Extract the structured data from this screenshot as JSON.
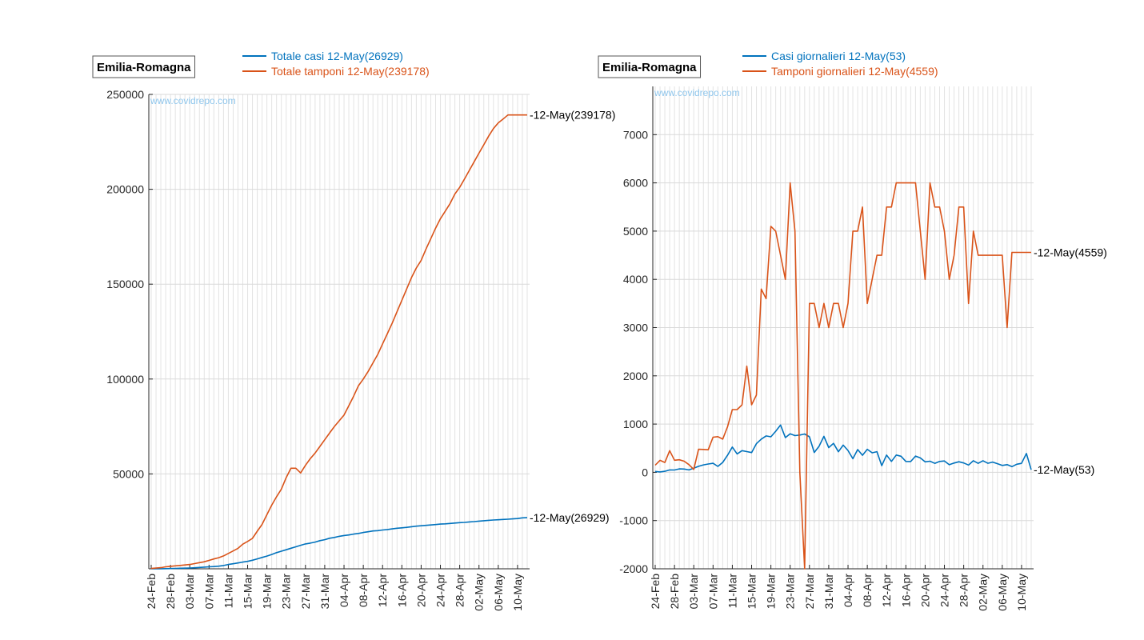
{
  "chart_data": [
    {
      "type": "line",
      "region": "Emilia-Romagna",
      "watermark": "www.covidrepo.com",
      "ylim": [
        0,
        250000
      ],
      "yticks": [
        50000,
        100000,
        150000,
        200000,
        250000
      ],
      "xtick_labels": [
        "24-Feb",
        "28-Feb",
        "03-Mar",
        "07-Mar",
        "11-Mar",
        "15-Mar",
        "19-Mar",
        "23-Mar",
        "27-Mar",
        "31-Mar",
        "04-Apr",
        "08-Apr",
        "12-Apr",
        "16-Apr",
        "20-Apr",
        "24-Apr",
        "28-Apr",
        "02-May",
        "06-May",
        "10-May"
      ],
      "x_start": "24-Feb",
      "n_days": 79,
      "grid": true,
      "legend_position": "top",
      "series": [
        {
          "name": "Totale casi 12-May(26929)",
          "color": "#0072bd",
          "end_label": "12-May(26929)",
          "values": [
            18,
            26,
            47,
            97,
            145,
            217,
            285,
            335,
            420,
            544,
            698,
            870,
            1058,
            1180,
            1386,
            1739,
            2263,
            2644,
            3093,
            3522,
            3931,
            4525,
            5214,
            5968,
            6705,
            7555,
            8535,
            9254,
            10054,
            10816,
            11588,
            12383,
            13119,
            13531,
            14074,
            14821,
            15333,
            16113,
            16540,
            17104,
            17556,
            17825,
            18297,
            18651,
            19128,
            19533,
            19961,
            20098,
            20456,
            20682,
            21040,
            21374,
            21600,
            21824,
            22160,
            22458,
            22676,
            22906,
            23092,
            23318,
            23553,
            23710,
            23902,
            24121,
            24315,
            24466,
            24706,
            24892,
            25132,
            25319,
            25531,
            25710,
            25852,
            26012,
            26130,
            26298,
            26484,
            26876,
            26929
          ]
        },
        {
          "name": "Totale tamponi 12-May(239178)",
          "color": "#d95319",
          "end_label": "12-May(239178)",
          "values": [
            148,
            396,
            600,
            1050,
            1300,
            1560,
            1790,
            2044,
            2280,
            2757,
            3232,
            3700,
            4428,
            5167,
            5856,
            6800,
            8100,
            9400,
            10800,
            13000,
            14400,
            16000,
            19800,
            23400,
            28500,
            33500,
            38000,
            42000,
            48000,
            53000,
            53000,
            50500,
            54500,
            58000,
            61000,
            64500,
            68000,
            71500,
            75000,
            78000,
            81000,
            86000,
            91000,
            96500,
            100000,
            104000,
            108500,
            113000,
            118500,
            124000,
            129500,
            135500,
            141500,
            147500,
            153500,
            158500,
            162500,
            168500,
            174000,
            179500,
            184500,
            188500,
            192500,
            197500,
            201000,
            205500,
            210000,
            214500,
            219000,
            223500,
            228000,
            232000,
            235000,
            237000,
            239178,
            239178,
            239178,
            239178,
            239178
          ]
        }
      ]
    },
    {
      "type": "line",
      "region": "Emilia-Romagna",
      "watermark": "www.covidrepo.com",
      "ylim": [
        -2000,
        8000
      ],
      "yticks": [
        -2000,
        -1000,
        0,
        1000,
        2000,
        3000,
        4000,
        5000,
        6000,
        7000
      ],
      "xtick_labels": [
        "24-Feb",
        "28-Feb",
        "03-Mar",
        "07-Mar",
        "11-Mar",
        "15-Mar",
        "19-Mar",
        "23-Mar",
        "27-Mar",
        "31-Mar",
        "04-Apr",
        "08-Apr",
        "12-Apr",
        "16-Apr",
        "20-Apr",
        "24-Apr",
        "28-Apr",
        "02-May",
        "06-May",
        "10-May"
      ],
      "x_start": "24-Feb",
      "n_days": 79,
      "grid": true,
      "legend_position": "top",
      "series": [
        {
          "name": "Casi giornalieri 12-May(53)",
          "color": "#0072bd",
          "end_label": "12-May(53)",
          "values": [
            18,
            8,
            21,
            50,
            48,
            72,
            68,
            50,
            85,
            124,
            154,
            172,
            188,
            122,
            206,
            353,
            524,
            381,
            449,
            429,
            409,
            594,
            689,
            754,
            737,
            850,
            980,
            719,
            800,
            762,
            772,
            795,
            736,
            412,
            543,
            747,
            512,
            600,
            427,
            564,
            452,
            282,
            472,
            354,
            477,
            405,
            428,
            137,
            358,
            226,
            358,
            334,
            226,
            224,
            336,
            298,
            218,
            230,
            186,
            226,
            235,
            157,
            192,
            219,
            194,
            151,
            240,
            186,
            240,
            187,
            212,
            179,
            142,
            160,
            118,
            168,
            186,
            392,
            53
          ]
        },
        {
          "name": "Tamponi giornalieri 12-May(4559)",
          "color": "#d95319",
          "end_label": "12-May(4559)",
          "values": [
            148,
            248,
            204,
            450,
            250,
            260,
            230,
            160,
            60,
            477,
            475,
            468,
            728,
            739,
            689,
            944,
            1300,
            1300,
            1398,
            2200,
            1400,
            1600,
            3800,
            3600,
            5100,
            5000,
            4500,
            4000,
            6000,
            5000,
            0,
            -2000,
            3500,
            3500,
            3000,
            3500,
            3000,
            3500,
            3500,
            3000,
            3500,
            5000,
            5000,
            5500,
            3500,
            4000,
            4500,
            4500,
            5500,
            5500,
            6000,
            6000,
            6000,
            6000,
            6000,
            5000,
            4000,
            6000,
            5500,
            5500,
            5000,
            4000,
            4500,
            5500,
            5500,
            3500,
            5000,
            4500,
            4500,
            4500,
            4500,
            4500,
            4500,
            3000,
            4559,
            4559,
            4559,
            4559,
            4559
          ]
        }
      ]
    }
  ]
}
